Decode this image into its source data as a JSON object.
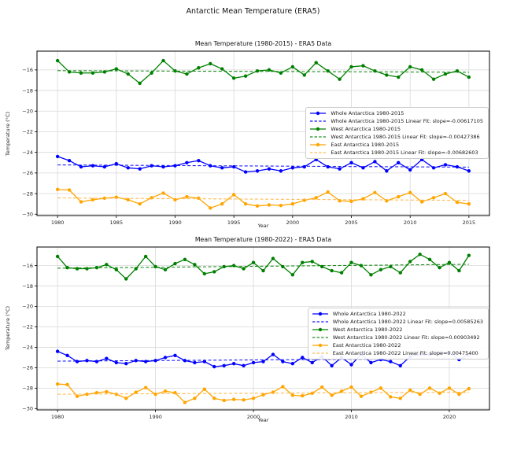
{
  "figure": {
    "title": "Antarctic Mean Temperature (ERA5)"
  },
  "style": {
    "background": "#ffffff",
    "grid_color": "#d9d9d9",
    "spine_color": "#000000",
    "tick_color": "#262626",
    "text_color": "#111111",
    "legend_border": "#cccccc",
    "whole_color": "#0000ff",
    "west_color": "#008000",
    "east_color": "#ffa500",
    "east_fit_color": "#ffb340"
  },
  "chart_data": [
    {
      "type": "line",
      "title": "Mean Temperature (1980-2015) - ERA5 Data",
      "xlabel": "Year",
      "ylabel": "Temperature (°C)",
      "xlim": [
        1978.25,
        2016.75
      ],
      "ylim": [
        -30.13,
        -14.18
      ],
      "xticks": [
        1980,
        1985,
        1990,
        1995,
        2000,
        2005,
        2010,
        2015
      ],
      "yticks": [
        -16,
        -18,
        -20,
        -22,
        -24,
        -26,
        -28,
        -30
      ],
      "grid": true,
      "legend_position": "center right",
      "x": [
        1980,
        1981,
        1982,
        1983,
        1984,
        1985,
        1986,
        1987,
        1988,
        1989,
        1990,
        1991,
        1992,
        1993,
        1994,
        1995,
        1996,
        1997,
        1998,
        1999,
        2000,
        2001,
        2002,
        2003,
        2004,
        2005,
        2006,
        2007,
        2008,
        2009,
        2010,
        2011,
        2012,
        2013,
        2014,
        2015
      ],
      "series": [
        {
          "name": "Whole Antarctica 1980-2015",
          "color": "#0000ff",
          "style": "solid-marker",
          "values": [
            -24.4,
            -24.8,
            -25.4,
            -25.3,
            -25.4,
            -25.1,
            -25.5,
            -25.6,
            -25.3,
            -25.4,
            -25.3,
            -25.0,
            -24.8,
            -25.3,
            -25.5,
            -25.4,
            -25.9,
            -25.8,
            -25.6,
            -25.8,
            -25.5,
            -25.4,
            -24.7,
            -25.4,
            -25.6,
            -25.0,
            -25.5,
            -24.9,
            -25.8,
            -25.0,
            -25.7,
            -24.7,
            -25.5,
            -25.2,
            -25.4,
            -25.8
          ]
        },
        {
          "name": "Whole Antarctica 1980-2015 Linear Fit: slope=-0.00617105",
          "color": "#0000ff",
          "style": "dashed",
          "fit_slope": -0.00617105,
          "fit_of": 0,
          "opacity": 0.9
        },
        {
          "name": "West Antarctica 1980-2015",
          "color": "#008000",
          "style": "solid-marker",
          "values": [
            -15.1,
            -16.2,
            -16.3,
            -16.3,
            -16.2,
            -15.9,
            -16.4,
            -17.3,
            -16.3,
            -15.1,
            -16.1,
            -16.4,
            -15.8,
            -15.4,
            -15.9,
            -16.8,
            -16.6,
            -16.1,
            -16.0,
            -16.3,
            -15.7,
            -16.5,
            -15.3,
            -16.1,
            -16.9,
            -15.7,
            -15.6,
            -16.1,
            -16.5,
            -16.7,
            -15.7,
            -16.0,
            -16.9,
            -16.4,
            -16.1,
            -16.7
          ]
        },
        {
          "name": "West Antarctica 1980-2015 Linear Fit: slope=-0.00427386",
          "color": "#008000",
          "style": "dashed",
          "fit_slope": -0.00427386,
          "fit_of": 2,
          "opacity": 0.9
        },
        {
          "name": "East Antarctica 1980-2015",
          "color": "#ffa500",
          "style": "solid-marker",
          "values": [
            -27.6,
            -27.65,
            -28.8,
            -28.6,
            -28.45,
            -28.35,
            -28.6,
            -29.0,
            -28.4,
            -27.95,
            -28.6,
            -28.3,
            -28.45,
            -29.4,
            -29.0,
            -28.1,
            -29.0,
            -29.2,
            -29.1,
            -29.15,
            -29.0,
            -28.65,
            -28.4,
            -27.85,
            -28.7,
            -28.75,
            -28.5,
            -27.9,
            -28.7,
            -28.3,
            -27.9,
            -28.8,
            -28.4,
            -28.0,
            -28.85,
            -29.0
          ]
        },
        {
          "name": "East Antarctica 1980-2015 Linear Fit: slope=-0.00682603",
          "color": "#ffb340",
          "style": "dashed",
          "fit_slope": -0.00682603,
          "fit_of": 4,
          "opacity": 0.9
        }
      ]
    },
    {
      "type": "line",
      "title": "Mean Temperature (1980-2022) - ERA5 Data",
      "xlabel": "Year",
      "ylabel": "Temperature (°C)",
      "xlim": [
        1977.9,
        2024.1
      ],
      "ylim": [
        -30.13,
        -14.18
      ],
      "xticks": [
        1980,
        1990,
        2000,
        2010,
        2020
      ],
      "yticks": [
        -16,
        -18,
        -20,
        -22,
        -24,
        -26,
        -28,
        -30
      ],
      "grid": true,
      "legend_position": "center right",
      "x": [
        1980,
        1981,
        1982,
        1983,
        1984,
        1985,
        1986,
        1987,
        1988,
        1989,
        1990,
        1991,
        1992,
        1993,
        1994,
        1995,
        1996,
        1997,
        1998,
        1999,
        2000,
        2001,
        2002,
        2003,
        2004,
        2005,
        2006,
        2007,
        2008,
        2009,
        2010,
        2011,
        2012,
        2013,
        2014,
        2015,
        2016,
        2017,
        2018,
        2019,
        2020,
        2021,
        2022
      ],
      "series": [
        {
          "name": "Whole Antarctica 1980-2022",
          "color": "#0000ff",
          "style": "solid-marker",
          "values": [
            -24.4,
            -24.8,
            -25.4,
            -25.3,
            -25.4,
            -25.1,
            -25.5,
            -25.6,
            -25.3,
            -25.4,
            -25.3,
            -25.0,
            -24.8,
            -25.3,
            -25.5,
            -25.4,
            -25.9,
            -25.8,
            -25.6,
            -25.8,
            -25.5,
            -25.4,
            -24.7,
            -25.4,
            -25.6,
            -25.0,
            -25.5,
            -24.9,
            -25.8,
            -25.0,
            -25.7,
            -24.7,
            -25.5,
            -25.2,
            -25.4,
            -25.8,
            -24.9,
            -24.7,
            -24.7,
            -24.6,
            -24.5,
            -25.2,
            -24.7
          ]
        },
        {
          "name": "Whole Antarctica 1980-2022 Linear Fit: slope=0.00585263",
          "color": "#0000ff",
          "style": "dashed",
          "fit_slope": 0.00585263,
          "fit_of": 0,
          "opacity": 0.9
        },
        {
          "name": "West Antarctica 1980-2022",
          "color": "#008000",
          "style": "solid-marker",
          "values": [
            -15.1,
            -16.2,
            -16.3,
            -16.3,
            -16.2,
            -15.9,
            -16.4,
            -17.3,
            -16.3,
            -15.1,
            -16.1,
            -16.4,
            -15.8,
            -15.4,
            -15.9,
            -16.8,
            -16.6,
            -16.1,
            -16.0,
            -16.3,
            -15.7,
            -16.5,
            -15.3,
            -16.1,
            -16.9,
            -15.7,
            -15.6,
            -16.1,
            -16.5,
            -16.7,
            -15.7,
            -16.0,
            -16.9,
            -16.4,
            -16.1,
            -16.7,
            -15.6,
            -14.9,
            -15.4,
            -16.2,
            -15.7,
            -16.5,
            -15.0
          ]
        },
        {
          "name": "West Antarctica 1980-2022 Linear Fit: slope=0.00903492",
          "color": "#008000",
          "style": "dashed",
          "fit_slope": 0.00903492,
          "fit_of": 2,
          "opacity": 0.9
        },
        {
          "name": "East Antarctica 1980-2022",
          "color": "#ffa500",
          "style": "solid-marker",
          "values": [
            -27.6,
            -27.65,
            -28.8,
            -28.6,
            -28.45,
            -28.35,
            -28.6,
            -29.0,
            -28.4,
            -27.95,
            -28.6,
            -28.3,
            -28.45,
            -29.4,
            -29.0,
            -28.1,
            -29.0,
            -29.2,
            -29.1,
            -29.15,
            -29.0,
            -28.65,
            -28.4,
            -27.85,
            -28.7,
            -28.75,
            -28.5,
            -27.9,
            -28.7,
            -28.3,
            -27.9,
            -28.8,
            -28.4,
            -28.0,
            -28.85,
            -29.0,
            -28.2,
            -28.6,
            -28.0,
            -28.5,
            -28.0,
            -28.6,
            -28.05
          ]
        },
        {
          "name": "East Antarctica 1980-2022 Linear Fit: slope=0.00475400",
          "color": "#ffb340",
          "style": "dashed",
          "fit_slope": 0.004754,
          "fit_of": 4,
          "opacity": 0.9
        }
      ]
    }
  ]
}
